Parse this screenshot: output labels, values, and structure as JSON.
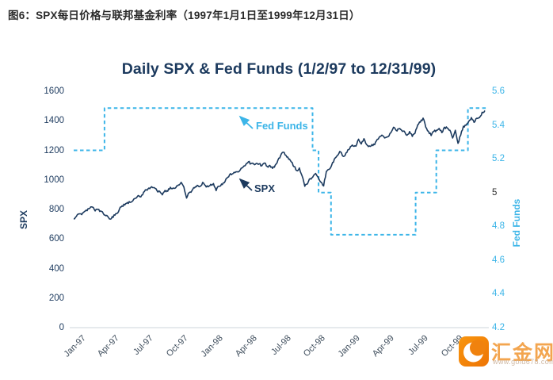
{
  "caption": "图6：SPX每日价格与联邦基金利率（1997年1月1日至1999年12月31日）",
  "chart": {
    "title": "Daily SPX & Fed Funds (1/2/97 to 12/31/99)",
    "annotations": {
      "fed_funds": "Fed Funds",
      "spx": "SPX"
    }
  },
  "watermark": {
    "name": "汇金网",
    "url": "www.gold678.com"
  },
  "colors": {
    "navy": "#1c3a5e",
    "blue": "#3cb5e8",
    "x_label": "#3e4d5c",
    "dark_tick": "#2d2d2d",
    "axis_line": "#d8dde2",
    "orange": "#f0820e"
  },
  "chart_data": {
    "type": "line",
    "title": "Daily SPX & Fed Funds (1/2/97 to 12/31/99)",
    "x_range": [
      "1997-01-02",
      "1999-12-31"
    ],
    "x_tick_labels": [
      "Jan-97",
      "Apr-97",
      "Jul-97",
      "Oct-97",
      "Jan-98",
      "Apr-98",
      "Jul-98",
      "Oct-98",
      "Jan-99",
      "Apr-99",
      "Jul-99",
      "Oct-99"
    ],
    "x_tick_dates": [
      "1997-01-02",
      "1997-04-01",
      "1997-07-01",
      "1997-10-01",
      "1998-01-01",
      "1998-04-01",
      "1998-07-01",
      "1998-10-01",
      "1999-01-01",
      "1999-04-01",
      "1999-07-01",
      "1999-10-01"
    ],
    "left": {
      "label": "SPX",
      "range": [
        0,
        1600
      ],
      "ticks": [
        0,
        200,
        400,
        600,
        800,
        1000,
        1200,
        1400,
        1600
      ]
    },
    "right": {
      "label": "Fed Funds",
      "range": [
        4.2,
        5.6
      ],
      "ticks": [
        4.2,
        4.4,
        4.6,
        4.8,
        5,
        5.2,
        5.4,
        5.6
      ],
      "dark_tick_value": 5
    },
    "grid": false,
    "legend": "annotated-arrows",
    "series": [
      {
        "name": "SPX",
        "axis": "left",
        "style": "solid",
        "sampling": "weekly",
        "values": [
          737,
          753,
          770,
          765,
          786,
          792,
          808,
          816,
          790,
          800,
          790,
          773,
          757,
          744,
          737,
          763,
          772,
          801,
          824,
          830,
          847,
          848,
          858,
          876,
          894,
          885,
          916,
          933,
          945,
          954,
          947,
          926,
          923,
          899,
          929,
          923,
          950,
          945,
          947,
          966,
          983,
          952,
          877,
          914,
          928,
          946,
          963,
          955,
          983,
          962,
          953,
          970,
          975,
          927,
          957,
          972,
          980,
          1012,
          1034,
          1040,
          1049,
          1055,
          1068,
          1086,
          1102,
          1122,
          1111,
          1107,
          1112,
          1108,
          1096,
          1114,
          1091,
          1098,
          1078,
          1100,
          1134,
          1164,
          1187,
          1166,
          1140,
          1121,
          1089,
          1063,
          1081,
          1027,
          957,
          973,
          1009,
          1020,
          1044,
          1017,
          984,
          959,
          1056,
          1071,
          1099,
          1141,
          1163,
          1192,
          1164,
          1166,
          1203,
          1226,
          1229,
          1228,
          1275,
          1243,
          1279,
          1239,
          1230,
          1239,
          1238,
          1275,
          1294,
          1299,
          1286,
          1293,
          1319,
          1356,
          1335,
          1345,
          1337,
          1330,
          1302,
          1327,
          1294,
          1315,
          1372,
          1391,
          1418,
          1357,
          1329,
          1300,
          1327,
          1336,
          1348,
          1320,
          1357,
          1351,
          1336,
          1283,
          1336,
          1247,
          1302,
          1363,
          1370,
          1396,
          1422,
          1389,
          1417,
          1421,
          1458,
          1469
        ]
      },
      {
        "name": "Fed Funds",
        "axis": "right",
        "style": "dashed",
        "steps": [
          {
            "date": "1997-01-02",
            "rate": 5.25
          },
          {
            "date": "1997-03-25",
            "rate": 5.5
          },
          {
            "date": "1998-09-29",
            "rate": 5.25
          },
          {
            "date": "1998-10-15",
            "rate": 5.0
          },
          {
            "date": "1998-11-17",
            "rate": 4.75
          },
          {
            "date": "1999-06-30",
            "rate": 5.0
          },
          {
            "date": "1999-08-24",
            "rate": 5.25
          },
          {
            "date": "1999-11-16",
            "rate": 5.5
          }
        ]
      }
    ]
  }
}
